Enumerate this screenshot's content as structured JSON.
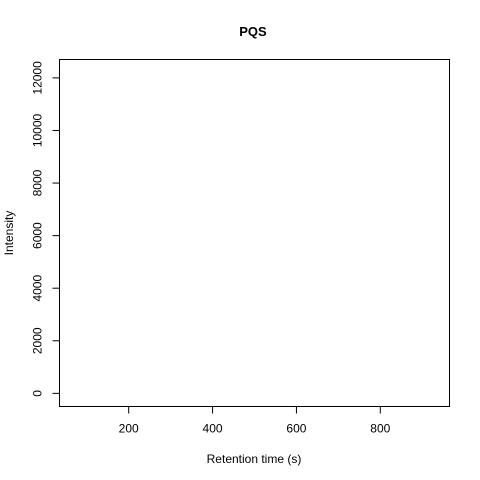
{
  "chart_data": {
    "type": "line",
    "title": "PQS",
    "xlabel": "Retention time (s)",
    "ylabel": "Intensity",
    "xlim": [
      35,
      965
    ],
    "ylim": [
      -500,
      12700
    ],
    "x_ticks": [
      200,
      400,
      600,
      800
    ],
    "y_ticks": [
      0,
      2000,
      4000,
      6000,
      8000,
      10000,
      12000
    ],
    "series": [],
    "grid": false,
    "legend": "none"
  }
}
